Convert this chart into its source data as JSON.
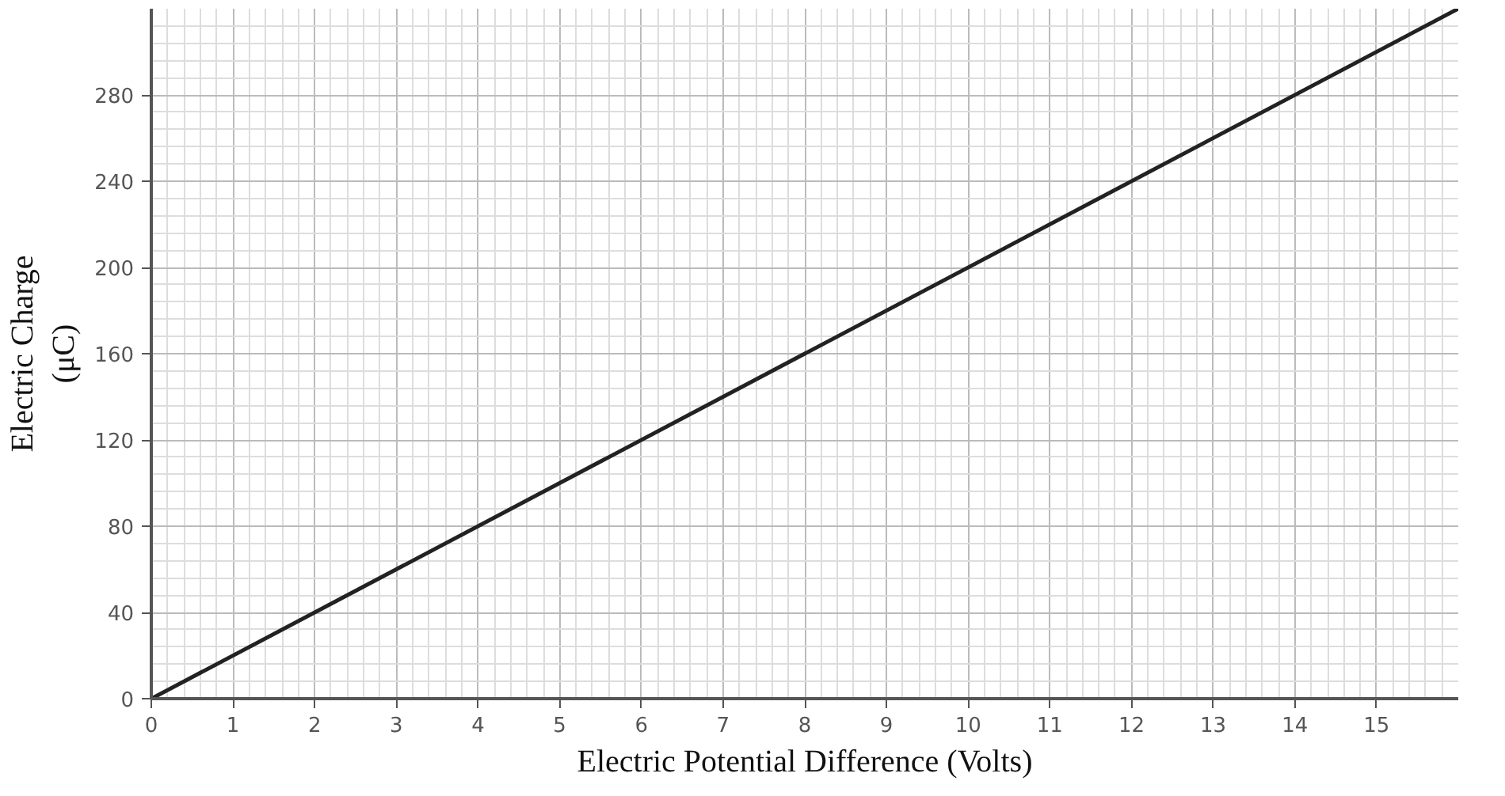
{
  "chart_data": {
    "type": "line",
    "xlabel": "Electric Potential Difference (Volts)",
    "ylabel": "Electric Charge\n(μC)",
    "x": [
      0,
      16
    ],
    "series": [
      {
        "color": "#222222",
        "values": [
          0,
          320
        ]
      }
    ],
    "xlim": [
      0,
      16
    ],
    "ylim": [
      0,
      320
    ],
    "xticks": [
      0,
      1,
      2,
      3,
      4,
      5,
      6,
      7,
      8,
      9,
      10,
      11,
      12,
      13,
      14,
      15
    ],
    "yticks": [
      0,
      40,
      80,
      120,
      160,
      200,
      240,
      280
    ],
    "grid": true,
    "marker": "none",
    "line_style": "solid"
  }
}
